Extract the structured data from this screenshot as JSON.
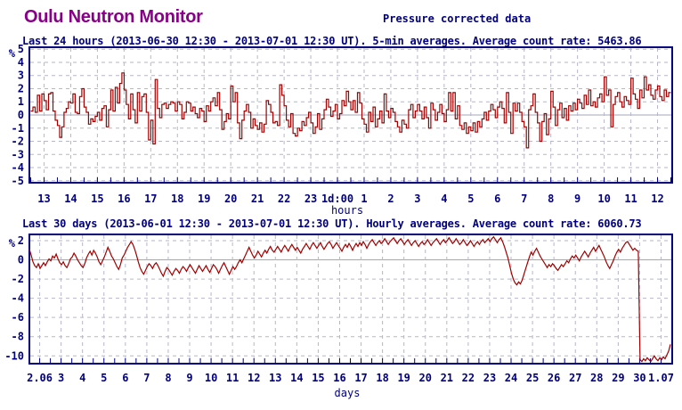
{
  "page": {
    "title": "Oulu Neutron Monitor",
    "subtitle": "Pressure corrected data"
  },
  "colors": {
    "title": "#880088",
    "text": "#000080",
    "frame": "#000080",
    "line": "#a00000",
    "grid": "#b6b6cc",
    "zero_line": "#a6a6ba",
    "background": "#ffffff"
  },
  "chart_data": [
    {
      "type": "line",
      "line_style": "step",
      "title": "Last 24 hours (2013-06-30 12:30 - 2013-07-01 12:30 UT). 5-min averages. Average count rate: 5463.86",
      "ylabel": "%",
      "xlabel": "hours",
      "average_count_rate": 5463.86,
      "xlim": [
        12.45,
        36.55
      ],
      "ylim": [
        -5.15,
        5.15
      ],
      "yticks": [
        5,
        4,
        3,
        2,
        1,
        0,
        -1,
        -2,
        -3,
        -4,
        -5
      ],
      "xticks": [
        [
          13,
          "13"
        ],
        [
          14,
          "14"
        ],
        [
          15,
          "15"
        ],
        [
          16,
          "16"
        ],
        [
          17,
          "17"
        ],
        [
          18,
          "18"
        ],
        [
          19,
          "19"
        ],
        [
          20,
          "20"
        ],
        [
          21,
          "21"
        ],
        [
          22,
          "22"
        ],
        [
          23,
          "23"
        ],
        [
          24,
          "1d:00"
        ],
        [
          25,
          "1"
        ],
        [
          26,
          "2"
        ],
        [
          27,
          "3"
        ],
        [
          28,
          "4"
        ],
        [
          29,
          "5"
        ],
        [
          30,
          "6"
        ],
        [
          31,
          "7"
        ],
        [
          32,
          "8"
        ],
        [
          33,
          "9"
        ],
        [
          34,
          "10"
        ],
        [
          35,
          "11"
        ],
        [
          36,
          "12"
        ]
      ],
      "x_start": 12.5,
      "x_step": 0.083333,
      "minor_tick_step": 0.5,
      "grid": true,
      "values": [
        0.3,
        0.6,
        0.2,
        1.5,
        0.3,
        1.6,
        1.1,
        0.4,
        1.6,
        1.7,
        0.3,
        -0.4,
        -0.8,
        -1.7,
        -0.9,
        0.2,
        0.5,
        1.0,
        0.9,
        1.6,
        0.2,
        0.1,
        1.4,
        2.0,
        0.6,
        0.2,
        -0.7,
        -0.3,
        -0.5,
        -0.1,
        0.2,
        -0.4,
        0.5,
        0.7,
        -0.9,
        0.4,
        1.9,
        0.3,
        2.1,
        0.9,
        2.4,
        3.2,
        1.9,
        0.8,
        -0.3,
        1.6,
        0.4,
        -0.6,
        1.7,
        0.3,
        1.4,
        1.6,
        0.2,
        -1.9,
        -0.4,
        -2.2,
        2.7,
        0.5,
        -0.2,
        0.8,
        0.9,
        0.5,
        0.8,
        1.0,
        0.9,
        0.3,
        1.0,
        0.8,
        -0.3,
        0.2,
        1.0,
        0.9,
        0.3,
        0.6,
        0.1,
        -0.2,
        0.5,
        0.3,
        -0.5,
        0.7,
        0.3,
        1.0,
        1.3,
        0.7,
        1.7,
        0.4,
        -1.1,
        -0.5,
        0.1,
        -0.3,
        2.2,
        1.0,
        1.7,
        -0.6,
        -1.8,
        -0.4,
        0.3,
        0.8,
        0.2,
        -1.0,
        -0.3,
        -0.8,
        -1.1,
        -0.6,
        -1.3,
        -0.7,
        1.1,
        0.8,
        0.2,
        -0.6,
        -0.5,
        -0.8,
        2.3,
        1.5,
        0.7,
        -0.4,
        -0.9,
        0.1,
        -1.4,
        -1.6,
        -1.0,
        -1.2,
        -0.5,
        -0.8,
        -0.2,
        0.2,
        -0.6,
        -1.4,
        -0.9,
        0.1,
        -1.1,
        -0.3,
        0.4,
        1.2,
        0.6,
        -0.1,
        0.3,
        0.8,
        -0.3,
        0.1,
        1.1,
        0.7,
        1.8,
        1.0,
        0.4,
        1.1,
        0.2,
        1.7,
        0.9,
        -0.3,
        -0.7,
        -1.3,
        0.2,
        -0.5,
        0.6,
        -0.9,
        -0.3,
        0.3,
        -0.6,
        1.6,
        0.3,
        -0.2,
        0.5,
        0.2,
        -0.5,
        -0.9,
        -1.3,
        -0.4,
        -0.7,
        -1.0,
        0.4,
        0.8,
        -0.2,
        0.3,
        0.8,
        0.3,
        -0.3,
        0.6,
        -0.2,
        -1.0,
        0.9,
        0.4,
        -0.4,
        0.2,
        0.8,
        0.1,
        -0.5,
        0.4,
        1.7,
        0.3,
        1.7,
        -0.3,
        0.7,
        -0.8,
        -1.1,
        -0.6,
        -1.4,
        -0.9,
        -1.2,
        -0.6,
        -1.3,
        -0.5,
        -0.9,
        -0.3,
        0.2,
        -0.4,
        0.3,
        0.8,
        0.4,
        -0.2,
        0.6,
        1.0,
        0.5,
        -0.6,
        1.7,
        0.2,
        -1.4,
        0.9,
        0.3,
        0.9,
        0.2,
        -0.5,
        -0.9,
        -2.5,
        0.4,
        0.7,
        1.6,
        0.2,
        -0.6,
        -2.0,
        -0.5,
        0.1,
        -1.5,
        -0.3,
        1.8,
        0.6,
        -0.8,
        0.4,
        0.9,
        -0.2,
        0.5,
        -0.4,
        0.7,
        0.3,
        0.9,
        0.4,
        1.2,
        0.9,
        0.5,
        1.5,
        0.8,
        1.9,
        0.7,
        1.0,
        0.6,
        1.3,
        1.6,
        1.0,
        2.9,
        1.5,
        1.9,
        -0.9,
        0.8,
        1.4,
        1.7,
        1.0,
        0.6,
        1.4,
        1.1,
        0.8,
        2.8,
        1.6,
        1.2,
        0.5,
        1.9,
        1.3,
        2.9,
        1.9,
        2.3,
        1.5,
        1.2,
        1.9,
        2.2,
        1.4,
        1.1,
        1.9,
        1.4,
        1.7
      ]
    },
    {
      "type": "line",
      "line_style": "linear",
      "title": "Last 30 days (2013-06-01 12:30 - 2013-07-01 12:30 UT). Hourly averages. Average count rate: 6060.73",
      "ylabel": "%",
      "xlabel": "days",
      "average_count_rate": 6060.73,
      "xlim": [
        1.52,
        31.52
      ],
      "ylim": [
        -10.81,
        2.65
      ],
      "yticks": [
        2,
        0,
        -2,
        -4,
        -6,
        -8,
        -10
      ],
      "xticks": [
        [
          2,
          "2.06"
        ],
        [
          3,
          "3"
        ],
        [
          4,
          "4"
        ],
        [
          5,
          "5"
        ],
        [
          6,
          "6"
        ],
        [
          7,
          "7"
        ],
        [
          8,
          "8"
        ],
        [
          9,
          "9"
        ],
        [
          10,
          "10"
        ],
        [
          11,
          "11"
        ],
        [
          12,
          "12"
        ],
        [
          13,
          "13"
        ],
        [
          14,
          "14"
        ],
        [
          15,
          "15"
        ],
        [
          16,
          "16"
        ],
        [
          17,
          "17"
        ],
        [
          18,
          "18"
        ],
        [
          19,
          "19"
        ],
        [
          20,
          "20"
        ],
        [
          21,
          "21"
        ],
        [
          22,
          "22"
        ],
        [
          23,
          "23"
        ],
        [
          24,
          "24"
        ],
        [
          25,
          "25"
        ],
        [
          26,
          "26"
        ],
        [
          27,
          "27"
        ],
        [
          28,
          "28"
        ],
        [
          29,
          "29"
        ],
        [
          30,
          "30"
        ],
        [
          31,
          "1.07"
        ]
      ],
      "x_start": 1.52,
      "x_step": 0.083333,
      "minor_tick_step": 0.5,
      "grid": true,
      "values": [
        1.1,
        0.5,
        -0.2,
        -0.6,
        -0.8,
        -0.4,
        -0.9,
        -0.6,
        -0.3,
        -0.6,
        -0.2,
        0.1,
        -0.1,
        0.4,
        0.2,
        0.6,
        0.1,
        -0.3,
        -0.5,
        -0.2,
        -0.6,
        -0.8,
        -0.4,
        0.1,
        0.3,
        0.7,
        0.4,
        0.0,
        -0.3,
        -0.6,
        -0.8,
        -0.4,
        0.2,
        0.6,
        0.9,
        0.5,
        1.0,
        0.7,
        0.3,
        -0.2,
        -0.5,
        -0.1,
        0.3,
        0.8,
        1.3,
        0.9,
        0.4,
        0.1,
        -0.3,
        -0.7,
        -1.0,
        -0.5,
        0.2,
        0.5,
        0.9,
        1.3,
        1.6,
        1.9,
        1.6,
        1.1,
        0.5,
        -0.2,
        -0.8,
        -1.2,
        -1.5,
        -1.1,
        -0.7,
        -0.4,
        -0.6,
        -0.9,
        -0.5,
        -0.3,
        -0.6,
        -1.0,
        -1.4,
        -1.7,
        -1.2,
        -0.8,
        -1.0,
        -1.3,
        -1.6,
        -1.2,
        -0.9,
        -1.1,
        -1.4,
        -1.0,
        -0.7,
        -0.9,
        -1.2,
        -0.8,
        -0.5,
        -0.8,
        -1.1,
        -1.4,
        -1.0,
        -0.6,
        -0.9,
        -1.2,
        -0.9,
        -0.6,
        -1.0,
        -1.3,
        -0.9,
        -0.5,
        -0.7,
        -1.0,
        -1.4,
        -1.0,
        -0.6,
        -0.3,
        -0.7,
        -1.1,
        -1.5,
        -1.1,
        -0.7,
        -1.0,
        -0.7,
        -0.3,
        0.0,
        -0.3,
        0.1,
        0.5,
        0.9,
        1.3,
        0.9,
        0.5,
        0.2,
        0.5,
        0.9,
        0.6,
        0.3,
        0.7,
        1.0,
        0.7,
        1.1,
        1.4,
        1.0,
        0.8,
        1.1,
        1.4,
        1.1,
        0.8,
        1.2,
        1.5,
        1.2,
        0.9,
        1.3,
        1.6,
        1.3,
        1.0,
        1.3,
        1.0,
        0.7,
        1.1,
        1.4,
        1.7,
        1.4,
        1.1,
        1.5,
        1.8,
        1.5,
        1.2,
        1.5,
        1.8,
        1.4,
        1.1,
        1.4,
        1.7,
        1.9,
        1.6,
        1.2,
        1.5,
        1.8,
        1.5,
        1.2,
        0.9,
        1.3,
        1.6,
        1.3,
        1.7,
        1.4,
        1.0,
        1.4,
        1.7,
        1.4,
        1.8,
        1.5,
        1.9,
        1.6,
        1.2,
        1.6,
        1.9,
        2.1,
        1.8,
        1.5,
        1.8,
        2.0,
        1.7,
        1.9,
        2.2,
        1.9,
        1.6,
        1.9,
        2.1,
        2.3,
        2.0,
        1.7,
        2.0,
        2.2,
        1.9,
        1.6,
        1.9,
        2.1,
        1.8,
        1.5,
        1.8,
        2.0,
        1.7,
        1.4,
        1.7,
        1.9,
        1.6,
        1.8,
        2.1,
        1.8,
        1.5,
        1.8,
        2.0,
        2.2,
        1.9,
        1.6,
        1.9,
        2.1,
        1.8,
        2.0,
        2.3,
        2.0,
        1.7,
        1.9,
        2.2,
        1.9,
        1.6,
        1.8,
        2.1,
        1.8,
        1.5,
        1.7,
        2.0,
        1.7,
        1.4,
        1.7,
        1.9,
        1.6,
        1.9,
        2.1,
        1.8,
        2.0,
        2.2,
        1.9,
        2.2,
        2.4,
        2.1,
        1.8,
        2.1,
        2.3,
        1.9,
        1.4,
        0.8,
        0.2,
        -0.6,
        -1.4,
        -2.0,
        -2.4,
        -2.6,
        -2.3,
        -2.5,
        -2.1,
        -1.5,
        -0.9,
        -0.3,
        0.3,
        0.8,
        0.5,
        0.9,
        1.2,
        0.8,
        0.4,
        0.1,
        -0.2,
        -0.5,
        -0.8,
        -0.5,
        -0.7,
        -0.4,
        -0.6,
        -0.9,
        -1.1,
        -0.8,
        -0.5,
        -0.7,
        -0.4,
        -0.1,
        -0.3,
        0.1,
        0.4,
        0.2,
        0.5,
        0.2,
        -0.1,
        0.3,
        0.6,
        0.9,
        0.6,
        0.3,
        0.7,
        1.0,
        1.3,
        0.9,
        1.2,
        1.5,
        1.1,
        0.7,
        0.3,
        -0.2,
        -0.6,
        -0.9,
        -0.5,
        -0.1,
        0.4,
        0.8,
        1.1,
        0.8,
        1.2,
        1.5,
        1.8,
        1.9,
        1.6,
        1.3,
        1.0,
        1.2,
        1.0,
        0.9,
        -10.4,
        -10.6,
        -10.3,
        -10.5,
        -10.2,
        -10.4,
        -10.6,
        -10.3,
        -10.0,
        -10.3,
        -10.5,
        -10.2,
        -10.4,
        -10.1,
        -10.3,
        -9.9,
        -9.5,
        -8.8
      ]
    }
  ]
}
